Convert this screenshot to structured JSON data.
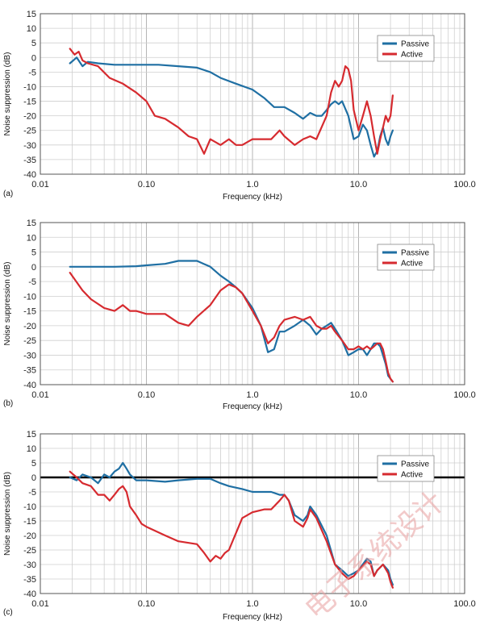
{
  "watermark": "电子系统设计",
  "chart_data": [
    {
      "type": "line",
      "panel_label": "(a)",
      "xlabel": "Frequency (kHz)",
      "ylabel": "Noise suppression (dB)",
      "x_scale": "log",
      "xlim": [
        0.01,
        100
      ],
      "ylim": [
        -40,
        15
      ],
      "x_ticks": [
        0.01,
        0.1,
        1,
        10,
        100
      ],
      "x_tick_labels": [
        "0.01",
        "0.10",
        "1.0",
        "10.0",
        "100.0"
      ],
      "y_ticks": [
        15,
        10,
        5,
        0,
        -5,
        -10,
        -15,
        -20,
        -25,
        -30,
        -35,
        -40
      ],
      "y_tick_labels": [
        "15",
        "10",
        "5",
        "0",
        "-5",
        "-10",
        "-15",
        "-20",
        "-25",
        "-30",
        "-35",
        "-40"
      ],
      "grid": true,
      "legend_position": "top-right",
      "series": [
        {
          "name": "Passive",
          "color": "#1f6fa3",
          "x": [
            0.019,
            0.022,
            0.025,
            0.028,
            0.035,
            0.05,
            0.07,
            0.1,
            0.13,
            0.2,
            0.3,
            0.4,
            0.5,
            0.7,
            1.0,
            1.3,
            1.6,
            2.0,
            2.5,
            3.0,
            3.5,
            4.0,
            4.5,
            5.0,
            5.5,
            6.0,
            6.5,
            7.0,
            8.0,
            9.0,
            10.0,
            11.0,
            12.0,
            13.0,
            14.0,
            15.0,
            16.0,
            17.0,
            18.0,
            19.0,
            20.0,
            21.0
          ],
          "y": [
            -2,
            0,
            -3,
            -1.5,
            -2,
            -2.5,
            -2.5,
            -2.5,
            -2.5,
            -3,
            -3.5,
            -5,
            -7,
            -9,
            -11,
            -14,
            -17,
            -17,
            -19,
            -21,
            -19,
            -20,
            -20,
            -18,
            -16,
            -15,
            -16,
            -15,
            -20,
            -28,
            -27,
            -23,
            -25,
            -30,
            -34,
            -32,
            -27,
            -24,
            -28,
            -30,
            -27,
            -25
          ]
        },
        {
          "name": "Active",
          "color": "#d62a2f",
          "x": [
            0.019,
            0.021,
            0.023,
            0.025,
            0.028,
            0.035,
            0.045,
            0.06,
            0.08,
            0.1,
            0.12,
            0.15,
            0.2,
            0.25,
            0.3,
            0.35,
            0.4,
            0.5,
            0.6,
            0.7,
            0.8,
            1.0,
            1.2,
            1.5,
            1.8,
            2.0,
            2.5,
            3.0,
            3.5,
            4.0,
            5.0,
            5.5,
            6.0,
            6.5,
            7.0,
            7.5,
            8.0,
            8.5,
            9.0,
            10.0,
            11.0,
            12.0,
            13.0,
            14.0,
            15.0,
            16.0,
            17.0,
            18.0,
            19.0,
            20.0,
            21.0
          ],
          "y": [
            3,
            1,
            2,
            -1,
            -2,
            -3,
            -7,
            -9,
            -12,
            -15,
            -20,
            -21,
            -24,
            -27,
            -28,
            -33,
            -28,
            -30,
            -28,
            -30,
            -30,
            -28,
            -28,
            -28,
            -25,
            -27,
            -30,
            -28,
            -27,
            -28,
            -20,
            -12,
            -8,
            -10,
            -8,
            -3,
            -4,
            -8,
            -18,
            -25,
            -20,
            -15,
            -20,
            -27,
            -33,
            -28,
            -24,
            -20,
            -22,
            -20,
            -13
          ]
        }
      ]
    },
    {
      "type": "line",
      "panel_label": "(b)",
      "xlabel": "Frequency (kHz)",
      "ylabel": "Noise suppression (dB)",
      "x_scale": "log",
      "xlim": [
        0.01,
        100
      ],
      "ylim": [
        -40,
        15
      ],
      "x_ticks": [
        0.01,
        0.1,
        1,
        10,
        100
      ],
      "x_tick_labels": [
        "0.01",
        "0.10",
        "1.0",
        "10.0",
        "100.0"
      ],
      "y_ticks": [
        15,
        10,
        5,
        0,
        -5,
        -10,
        -15,
        -20,
        -25,
        -30,
        -35,
        -40
      ],
      "y_tick_labels": [
        "15",
        "10",
        "5",
        "0",
        "-5",
        "-10",
        "-15",
        "-20",
        "-25",
        "-30",
        "-35",
        "-40"
      ],
      "grid": true,
      "legend_position": "top-right",
      "series": [
        {
          "name": "Passive",
          "color": "#1f6fa3",
          "x": [
            0.019,
            0.03,
            0.05,
            0.08,
            0.1,
            0.15,
            0.2,
            0.25,
            0.3,
            0.4,
            0.5,
            0.6,
            0.7,
            0.8,
            1.0,
            1.2,
            1.4,
            1.6,
            1.8,
            2.0,
            2.5,
            3.0,
            3.5,
            4.0,
            4.5,
            5.0,
            5.5,
            6.0,
            7.0,
            8.0,
            9.0,
            10.0,
            11.0,
            12.0,
            13.0,
            14.0,
            15.0,
            16.0,
            17.0,
            18.0,
            19.0,
            20.0,
            21.0
          ],
          "y": [
            0,
            0,
            0,
            0.2,
            0.5,
            1,
            2,
            2,
            2,
            0,
            -3,
            -5,
            -7,
            -9,
            -14,
            -20,
            -29,
            -28,
            -22,
            -22,
            -20,
            -18,
            -20,
            -23,
            -21,
            -20,
            -19,
            -21,
            -25,
            -30,
            -29,
            -28,
            -28,
            -30,
            -28,
            -26,
            -26,
            -27,
            -30,
            -33,
            -37,
            -38,
            -39
          ]
        },
        {
          "name": "Active",
          "color": "#d62a2f",
          "x": [
            0.019,
            0.025,
            0.03,
            0.04,
            0.05,
            0.06,
            0.07,
            0.08,
            0.1,
            0.15,
            0.2,
            0.25,
            0.3,
            0.4,
            0.5,
            0.6,
            0.7,
            0.8,
            1.0,
            1.2,
            1.4,
            1.6,
            1.8,
            2.0,
            2.5,
            3.0,
            3.5,
            4.0,
            4.5,
            5.0,
            5.5,
            6.0,
            7.0,
            8.0,
            9.0,
            10.0,
            11.0,
            12.0,
            13.0,
            14.0,
            15.0,
            16.0,
            17.0,
            18.0,
            19.0,
            20.0,
            21.0
          ],
          "y": [
            -2,
            -8,
            -11,
            -14,
            -15,
            -13,
            -15,
            -15,
            -16,
            -16,
            -19,
            -20,
            -17,
            -13,
            -8,
            -6,
            -7,
            -9,
            -15,
            -20,
            -26,
            -24,
            -20,
            -18,
            -17,
            -18,
            -17,
            -20,
            -21,
            -21,
            -20,
            -22,
            -25,
            -28,
            -28,
            -27,
            -28,
            -27,
            -28,
            -27,
            -26,
            -26,
            -28,
            -32,
            -36,
            -38,
            -39
          ]
        }
      ]
    },
    {
      "type": "line",
      "panel_label": "(c)",
      "xlabel": "Frequency (kHz)",
      "ylabel": "Noise suppression (dB)",
      "x_scale": "log",
      "xlim": [
        0.01,
        100
      ],
      "ylim": [
        -40,
        15
      ],
      "x_ticks": [
        0.01,
        0.1,
        1,
        10,
        100
      ],
      "x_tick_labels": [
        "0.01",
        "0.10",
        "1.0",
        "10.0",
        "100.0"
      ],
      "y_ticks": [
        15,
        10,
        5,
        0,
        -5,
        -10,
        -15,
        -20,
        -25,
        -30,
        -35,
        -40
      ],
      "y_tick_labels": [
        "15",
        "10",
        "5",
        "0",
        "-5",
        "-10",
        "-15",
        "-20",
        "-25",
        "-30",
        "-35",
        "-40"
      ],
      "grid": true,
      "zero_line": true,
      "legend_position": "top-right",
      "series": [
        {
          "name": "Passive",
          "color": "#1f6fa3",
          "x": [
            0.019,
            0.022,
            0.025,
            0.03,
            0.035,
            0.04,
            0.045,
            0.05,
            0.055,
            0.06,
            0.065,
            0.07,
            0.08,
            0.09,
            0.1,
            0.15,
            0.2,
            0.3,
            0.4,
            0.5,
            0.6,
            0.8,
            1.0,
            1.5,
            1.8,
            2.0,
            2.2,
            2.5,
            3.0,
            3.3,
            3.5,
            4.0,
            5.0,
            6.0,
            7.0,
            8.0,
            9.0,
            10.0,
            12.0,
            13.0,
            14.0,
            15.0,
            17.0,
            19.0,
            20.0,
            21.0
          ],
          "y": [
            0,
            -1,
            1,
            0,
            -2,
            1,
            0,
            2,
            3,
            5,
            3,
            1,
            -1,
            -1,
            -1,
            -1.5,
            -1,
            -0.5,
            -0.5,
            -2,
            -3,
            -4,
            -5,
            -5,
            -6,
            -6,
            -8,
            -13,
            -15,
            -13,
            -10,
            -13,
            -20,
            -30,
            -32,
            -34,
            -33,
            -32,
            -28,
            -29,
            -34,
            -32,
            -30,
            -32,
            -35,
            -37
          ]
        },
        {
          "name": "Active",
          "color": "#d62a2f",
          "x": [
            0.019,
            0.022,
            0.025,
            0.03,
            0.035,
            0.04,
            0.045,
            0.05,
            0.055,
            0.06,
            0.065,
            0.07,
            0.08,
            0.09,
            0.1,
            0.15,
            0.2,
            0.3,
            0.35,
            0.4,
            0.45,
            0.5,
            0.55,
            0.6,
            0.8,
            1.0,
            1.3,
            1.5,
            1.8,
            2.0,
            2.2,
            2.5,
            3.0,
            3.3,
            3.5,
            4.0,
            5.0,
            6.0,
            7.0,
            8.0,
            9.0,
            10.0,
            12.0,
            13.0,
            14.0,
            15.0,
            17.0,
            19.0,
            20.0,
            21.0
          ],
          "y": [
            2,
            0,
            -2,
            -3,
            -6,
            -6,
            -8,
            -6,
            -4,
            -3,
            -5,
            -10,
            -13,
            -16,
            -17,
            -20,
            -22,
            -23,
            -26,
            -29,
            -27,
            -28,
            -26,
            -25,
            -14,
            -12,
            -11,
            -11,
            -8,
            -6,
            -8,
            -15,
            -17,
            -14,
            -11,
            -14,
            -22,
            -30,
            -33,
            -35,
            -34,
            -32,
            -29,
            -30,
            -34,
            -32,
            -30,
            -33,
            -36,
            -38
          ]
        }
      ]
    }
  ]
}
